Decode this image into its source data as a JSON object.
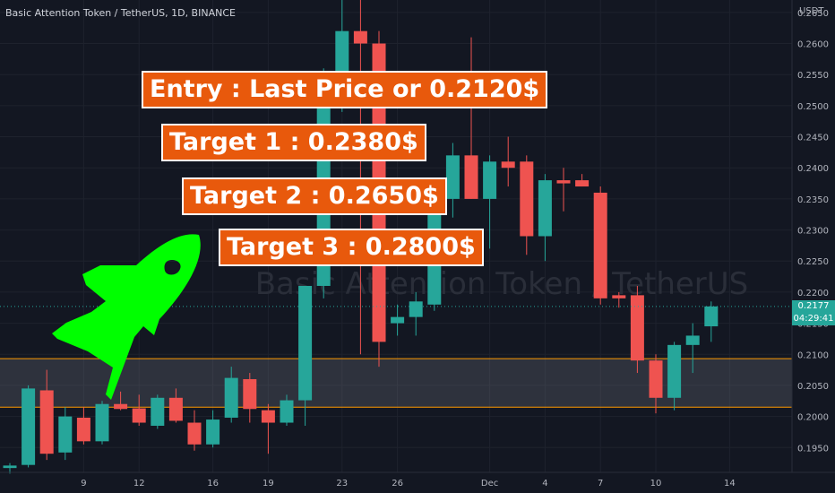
{
  "header": {
    "title": "Basic Attention Token / TetherUS, 1D, BINANCE",
    "unit": "USDT"
  },
  "watermark": "Basic Attention Token / TetherUS",
  "annotations": [
    "Entry : Last Price or 0.2120$",
    "Target 1 : 0.2380$",
    "Target 2 : 0.2650$",
    "Target 3 : 0.2800$"
  ],
  "last_price": {
    "value": "0.2177",
    "countdown": "04:29:41"
  },
  "colors": {
    "up": "#26a69a",
    "down": "#ef5350",
    "zone": "#ff9800",
    "callout": "#e8590c",
    "rocket": "#00ff00"
  },
  "chart_data": {
    "type": "candlestick",
    "x_tick_labels": [
      "9",
      "12",
      "16",
      "19",
      "23",
      "26",
      "Dec",
      "4",
      "7",
      "10",
      "14"
    ],
    "y_tick_labels": [
      "0.1950",
      "0.2000",
      "0.2050",
      "0.2100",
      "0.2150",
      "0.2200",
      "0.2250",
      "0.2300",
      "0.2350",
      "0.2400",
      "0.2450",
      "0.2500",
      "0.2550",
      "0.2600",
      "0.2650"
    ],
    "ylim": [
      0.191,
      0.267
    ],
    "support_zone": [
      0.2015,
      0.2093
    ],
    "last_price": 0.2177,
    "candles": [
      {
        "o": 0.1917,
        "h": 0.1925,
        "l": 0.1908,
        "c": 0.1921
      },
      {
        "o": 0.1922,
        "h": 0.205,
        "l": 0.1918,
        "c": 0.2045
      },
      {
        "o": 0.2042,
        "h": 0.2075,
        "l": 0.193,
        "c": 0.194
      },
      {
        "o": 0.1942,
        "h": 0.2015,
        "l": 0.193,
        "c": 0.2
      },
      {
        "o": 0.1998,
        "h": 0.2015,
        "l": 0.1955,
        "c": 0.196
      },
      {
        "o": 0.196,
        "h": 0.2025,
        "l": 0.1955,
        "c": 0.202
      },
      {
        "o": 0.202,
        "h": 0.204,
        "l": 0.201,
        "c": 0.2012
      },
      {
        "o": 0.2013,
        "h": 0.2035,
        "l": 0.1985,
        "c": 0.199
      },
      {
        "o": 0.1985,
        "h": 0.2035,
        "l": 0.198,
        "c": 0.203
      },
      {
        "o": 0.203,
        "h": 0.2045,
        "l": 0.199,
        "c": 0.1993
      },
      {
        "o": 0.199,
        "h": 0.201,
        "l": 0.1945,
        "c": 0.1955
      },
      {
        "o": 0.1955,
        "h": 0.201,
        "l": 0.195,
        "c": 0.1995
      },
      {
        "o": 0.1998,
        "h": 0.208,
        "l": 0.199,
        "c": 0.2062
      },
      {
        "o": 0.206,
        "h": 0.207,
        "l": 0.199,
        "c": 0.2012
      },
      {
        "o": 0.201,
        "h": 0.202,
        "l": 0.194,
        "c": 0.199
      },
      {
        "o": 0.199,
        "h": 0.2035,
        "l": 0.1985,
        "c": 0.2026
      },
      {
        "o": 0.2026,
        "h": 0.221,
        "l": 0.1985,
        "c": 0.221
      },
      {
        "o": 0.221,
        "h": 0.256,
        "l": 0.219,
        "c": 0.254
      },
      {
        "o": 0.254,
        "h": 0.268,
        "l": 0.249,
        "c": 0.262
      },
      {
        "o": 0.262,
        "h": 0.268,
        "l": 0.21,
        "c": 0.26
      },
      {
        "o": 0.26,
        "h": 0.262,
        "l": 0.208,
        "c": 0.212
      },
      {
        "o": 0.215,
        "h": 0.218,
        "l": 0.213,
        "c": 0.216
      },
      {
        "o": 0.216,
        "h": 0.22,
        "l": 0.213,
        "c": 0.2185
      },
      {
        "o": 0.218,
        "h": 0.236,
        "l": 0.217,
        "c": 0.235
      },
      {
        "o": 0.235,
        "h": 0.244,
        "l": 0.232,
        "c": 0.242
      },
      {
        "o": 0.242,
        "h": 0.261,
        "l": 0.235,
        "c": 0.235
      },
      {
        "o": 0.235,
        "h": 0.242,
        "l": 0.227,
        "c": 0.241
      },
      {
        "o": 0.241,
        "h": 0.245,
        "l": 0.237,
        "c": 0.24
      },
      {
        "o": 0.241,
        "h": 0.242,
        "l": 0.226,
        "c": 0.229
      },
      {
        "o": 0.229,
        "h": 0.239,
        "l": 0.225,
        "c": 0.238
      },
      {
        "o": 0.238,
        "h": 0.24,
        "l": 0.233,
        "c": 0.2375
      },
      {
        "o": 0.238,
        "h": 0.239,
        "l": 0.237,
        "c": 0.237
      },
      {
        "o": 0.236,
        "h": 0.237,
        "l": 0.218,
        "c": 0.219
      },
      {
        "o": 0.2195,
        "h": 0.22,
        "l": 0.2175,
        "c": 0.219
      },
      {
        "o": 0.2195,
        "h": 0.221,
        "l": 0.207,
        "c": 0.209
      },
      {
        "o": 0.209,
        "h": 0.21,
        "l": 0.2005,
        "c": 0.203
      },
      {
        "o": 0.203,
        "h": 0.212,
        "l": 0.201,
        "c": 0.2115
      },
      {
        "o": 0.2115,
        "h": 0.215,
        "l": 0.207,
        "c": 0.213
      },
      {
        "o": 0.2145,
        "h": 0.2185,
        "l": 0.212,
        "c": 0.2177
      }
    ]
  }
}
